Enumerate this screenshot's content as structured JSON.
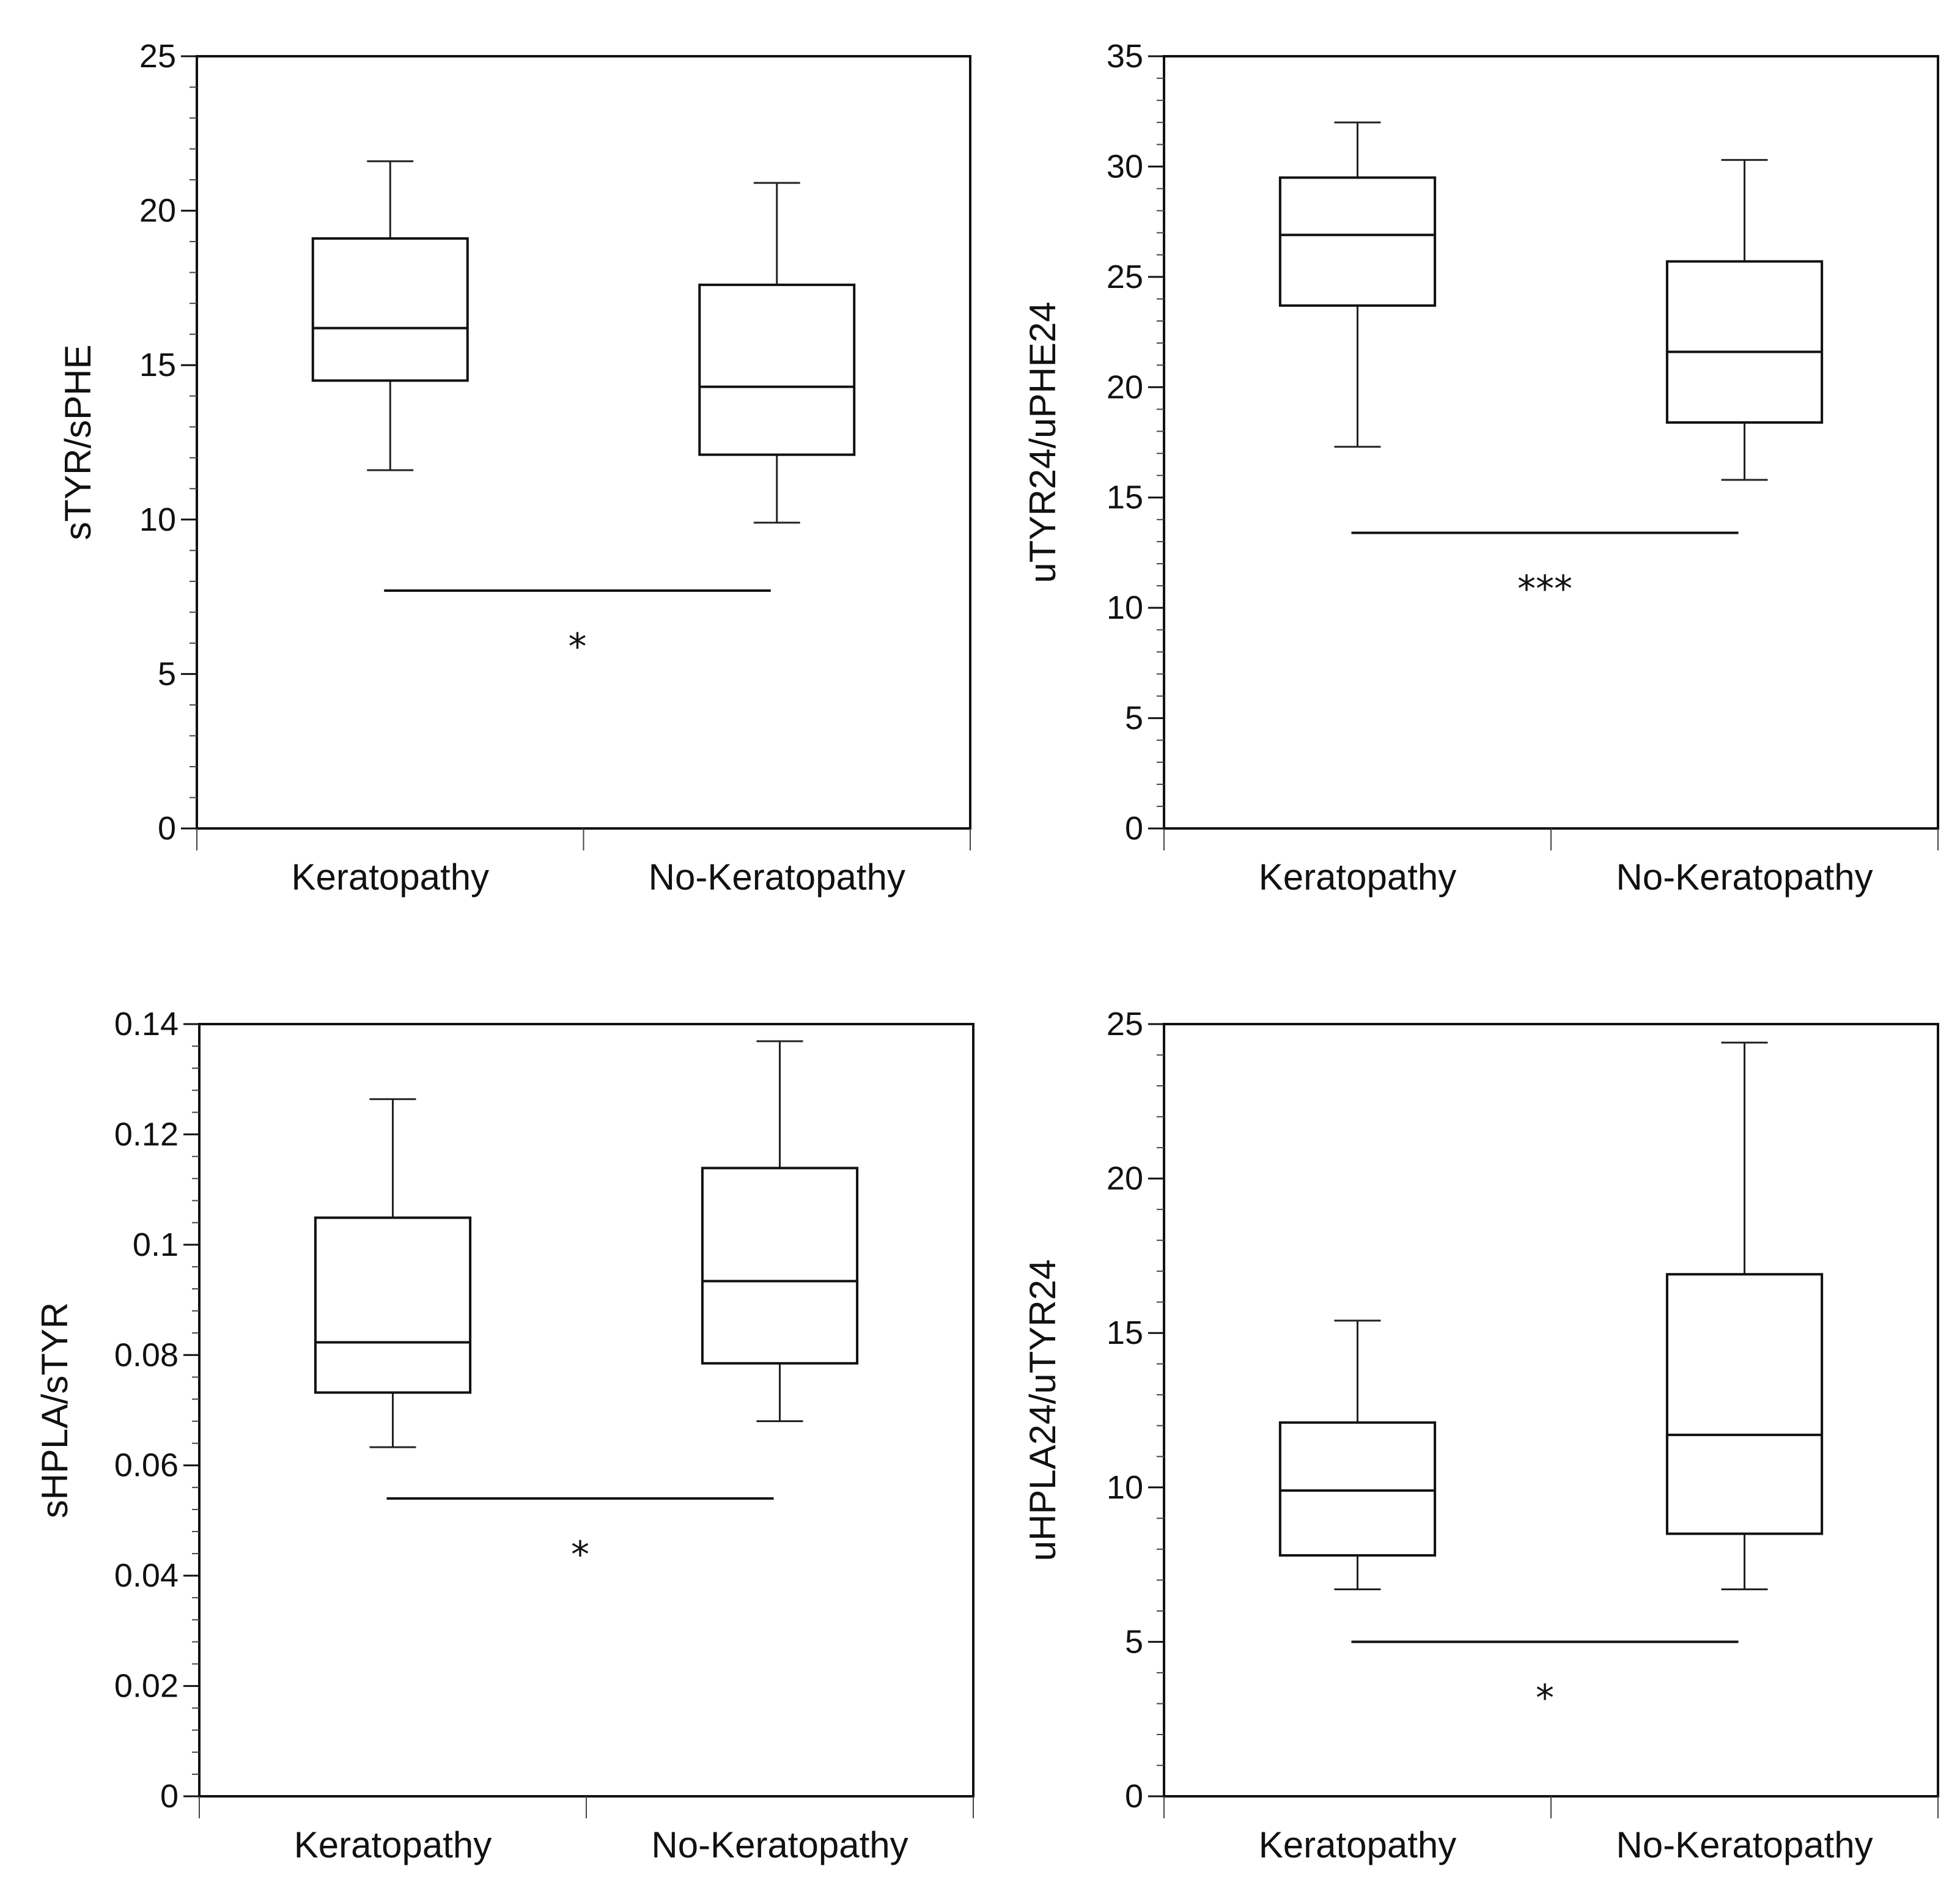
{
  "chart_data": [
    {
      "type": "boxplot",
      "ylabel": "sTYR/sPHE",
      "ylim": [
        0,
        25
      ],
      "yticks": [
        0,
        5,
        10,
        15,
        20,
        25
      ],
      "ytick_labels": [
        "0",
        "5",
        "10",
        "15",
        "20",
        "25"
      ],
      "categories": [
        "Keratopathy",
        "No-Keratopathy"
      ],
      "boxes": [
        {
          "min": 11.6,
          "q1": 14.5,
          "median": 16.2,
          "q3": 19.1,
          "max": 21.6
        },
        {
          "min": 9.9,
          "q1": 12.1,
          "median": 14.3,
          "q3": 17.6,
          "max": 20.9
        }
      ],
      "significance": {
        "y": 7.7,
        "label": "*"
      }
    },
    {
      "type": "boxplot",
      "ylabel": "uTYR24/uPHE24",
      "ylim": [
        0,
        35
      ],
      "yticks": [
        0,
        5,
        10,
        15,
        20,
        25,
        30,
        35
      ],
      "ytick_labels": [
        "0",
        "5",
        "10",
        "15",
        "20",
        "25",
        "30",
        "35"
      ],
      "categories": [
        "Keratopathy",
        "No-Keratopathy"
      ],
      "boxes": [
        {
          "min": 17.3,
          "q1": 23.7,
          "median": 26.9,
          "q3": 29.5,
          "max": 32.0
        },
        {
          "min": 15.8,
          "q1": 18.4,
          "median": 21.6,
          "q3": 25.7,
          "max": 30.3
        }
      ],
      "significance": {
        "y": 13.4,
        "label": "***"
      }
    },
    {
      "type": "boxplot",
      "ylabel": "sHPLA/sTYR",
      "ylim": [
        0,
        0.14
      ],
      "yticks": [
        0,
        0.02,
        0.04,
        0.06,
        0.08,
        0.1,
        0.12,
        0.14
      ],
      "ytick_labels": [
        "0",
        "0.02",
        "0.04",
        "0.06",
        "0.08",
        "0.1",
        "0.12",
        "0.14"
      ],
      "categories": [
        "Keratopathy",
        "No-Keratopathy"
      ],
      "boxes": [
        {
          "min": 0.0633,
          "q1": 0.0732,
          "median": 0.0823,
          "q3": 0.1049,
          "max": 0.1264
        },
        {
          "min": 0.068,
          "q1": 0.0785,
          "median": 0.0934,
          "q3": 0.1139,
          "max": 0.1369
        }
      ],
      "significance": {
        "y": 0.054,
        "label": "*"
      }
    },
    {
      "type": "boxplot",
      "ylabel": "uHPLA24/uTYR24",
      "ylim": [
        0,
        25
      ],
      "yticks": [
        0,
        5,
        10,
        15,
        20,
        25
      ],
      "ytick_labels": [
        "0",
        "5",
        "10",
        "15",
        "20",
        "25"
      ],
      "categories": [
        "Keratopathy",
        "No-Keratopathy"
      ],
      "boxes": [
        {
          "min": 6.7,
          "q1": 7.8,
          "median": 9.9,
          "q3": 12.1,
          "max": 15.4
        },
        {
          "min": 6.7,
          "q1": 8.5,
          "median": 11.7,
          "q3": 16.9,
          "max": 24.4
        }
      ],
      "significance": {
        "y": 5.0,
        "label": "*"
      }
    }
  ]
}
